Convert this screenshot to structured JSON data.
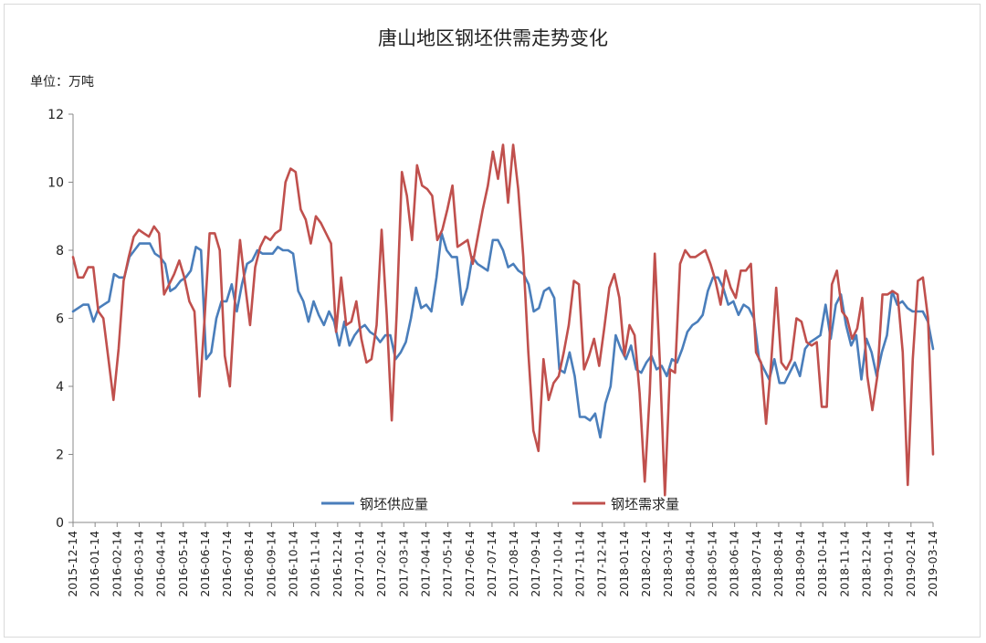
{
  "chart_data": {
    "type": "line",
    "title": "唐山地区钢坯供需走势变化",
    "unit_label": "单位：万吨",
    "xlabel": "",
    "ylabel": "",
    "ylim": [
      0,
      12
    ],
    "yticks": [
      0,
      2,
      4,
      6,
      8,
      10,
      12
    ],
    "grid": false,
    "legend_position": "bottom-center",
    "x_tick_labels": [
      "2015-12-14",
      "2016-01-14",
      "2016-02-14",
      "2016-03-14",
      "2016-04-14",
      "2016-05-14",
      "2016-06-14",
      "2016-07-14",
      "2016-08-14",
      "2016-09-14",
      "2016-10-14",
      "2016-11-14",
      "2016-12-14",
      "2017-01-14",
      "2017-02-14",
      "2017-03-14",
      "2017-04-14",
      "2017-05-14",
      "2017-06-14",
      "2017-07-14",
      "2017-08-14",
      "2017-09-14",
      "2017-10-14",
      "2017-11-14",
      "2017-12-14",
      "2018-01-14",
      "2018-02-14",
      "2018-03-14",
      "2018-04-14",
      "2018-05-14",
      "2018-06-14",
      "2018-07-14",
      "2018-08-14",
      "2018-09-14",
      "2018-10-14",
      "2018-11-14",
      "2018-12-14",
      "2019-01-14",
      "2019-02-14",
      "2019-03-14"
    ],
    "x_start": "2015-12-14",
    "x_end": "2019-03-14",
    "series": [
      {
        "name": "钢坯供应量",
        "color": "#4a7ebb",
        "values": [
          6.2,
          6.3,
          6.4,
          6.4,
          5.9,
          6.3,
          6.4,
          6.5,
          7.3,
          7.2,
          7.2,
          7.8,
          8.0,
          8.2,
          8.2,
          8.2,
          7.9,
          7.8,
          7.6,
          6.8,
          6.9,
          7.1,
          7.2,
          7.4,
          8.1,
          8.0,
          4.8,
          5.0,
          6.0,
          6.5,
          6.5,
          7.0,
          6.2,
          7.0,
          7.6,
          7.7,
          8.0,
          7.9,
          7.9,
          7.9,
          8.1,
          8.0,
          8.0,
          7.9,
          6.8,
          6.5,
          5.9,
          6.5,
          6.1,
          5.8,
          6.2,
          5.9,
          5.2,
          5.9,
          5.2,
          5.5,
          5.7,
          5.8,
          5.6,
          5.5,
          5.3,
          5.5,
          5.5,
          4.8,
          5.0,
          5.3,
          6.0,
          6.9,
          6.3,
          6.4,
          6.2,
          7.2,
          8.5,
          8.0,
          7.8,
          7.8,
          6.4,
          6.9,
          7.8,
          7.6,
          7.5,
          7.4,
          8.3,
          8.3,
          8.0,
          7.5,
          7.6,
          7.4,
          7.3,
          7.0,
          6.2,
          6.3,
          6.8,
          6.9,
          6.6,
          4.5,
          4.4,
          5.0,
          4.3,
          3.1,
          3.1,
          3.0,
          3.2,
          2.5,
          3.5,
          4.0,
          5.5,
          5.1,
          4.8,
          5.2,
          4.5,
          4.4,
          4.7,
          4.9,
          4.5,
          4.6,
          4.3,
          4.8,
          4.7,
          5.1,
          5.6,
          5.8,
          5.9,
          6.1,
          6.8,
          7.2,
          7.2,
          6.9,
          6.4,
          6.5,
          6.1,
          6.4,
          6.3,
          6.0,
          4.8,
          4.5,
          4.2,
          4.8,
          4.1,
          4.1,
          4.4,
          4.7,
          4.3,
          5.1,
          5.3,
          5.4,
          5.5,
          6.4,
          5.4,
          6.4,
          6.7,
          5.8,
          5.2,
          5.5,
          4.2,
          5.4,
          5.0,
          4.3,
          5.0,
          5.5,
          6.8,
          6.4,
          6.5,
          6.3,
          6.2,
          6.2,
          6.2,
          5.9,
          5.1
        ]
      },
      {
        "name": "钢坯需求量",
        "color": "#c0504d",
        "values": [
          7.8,
          7.2,
          7.2,
          7.5,
          7.5,
          6.2,
          6.0,
          4.8,
          3.6,
          5.1,
          7.1,
          7.8,
          8.4,
          8.6,
          8.5,
          8.4,
          8.7,
          8.5,
          6.7,
          7.0,
          7.3,
          7.7,
          7.2,
          6.5,
          6.2,
          3.7,
          6.0,
          8.5,
          8.5,
          8.0,
          4.9,
          4.0,
          6.5,
          8.3,
          7.0,
          5.8,
          7.5,
          8.1,
          8.4,
          8.3,
          8.5,
          8.6,
          10.0,
          10.4,
          10.3,
          9.2,
          8.9,
          8.2,
          9.0,
          8.8,
          8.5,
          8.2,
          5.6,
          7.2,
          5.8,
          5.9,
          6.5,
          5.4,
          4.7,
          4.8,
          5.8,
          8.6,
          6.1,
          3.0,
          6.2,
          10.3,
          9.6,
          8.3,
          10.5,
          9.9,
          9.8,
          9.6,
          8.3,
          8.6,
          9.2,
          9.9,
          8.1,
          8.2,
          8.3,
          7.6,
          8.4,
          9.2,
          9.9,
          10.9,
          10.1,
          11.1,
          9.4,
          11.1,
          9.8,
          7.8,
          5.0,
          2.7,
          2.1,
          4.8,
          3.6,
          4.1,
          4.3,
          5.0,
          5.8,
          7.1,
          7.0,
          4.5,
          4.9,
          5.4,
          4.6,
          5.7,
          6.9,
          7.3,
          6.6,
          4.9,
          5.8,
          5.5,
          3.8,
          1.2,
          3.8,
          7.9,
          4.7,
          0.8,
          4.5,
          4.4,
          7.6,
          8.0,
          7.8,
          7.8,
          7.9,
          8.0,
          7.6,
          7.1,
          6.4,
          7.4,
          6.9,
          6.6,
          7.4,
          7.4,
          7.6,
          5.0,
          4.7,
          2.9,
          4.7,
          6.9,
          4.7,
          4.5,
          4.8,
          6.0,
          5.9,
          5.3,
          5.2,
          5.3,
          3.4,
          3.4,
          7.0,
          7.4,
          6.2,
          6.0,
          5.4,
          5.7,
          6.6,
          4.3,
          3.3,
          4.3,
          6.7,
          6.7,
          6.8,
          6.7,
          5.0,
          1.1,
          4.8,
          7.1,
          7.2,
          6.0,
          2.0
        ]
      }
    ]
  }
}
